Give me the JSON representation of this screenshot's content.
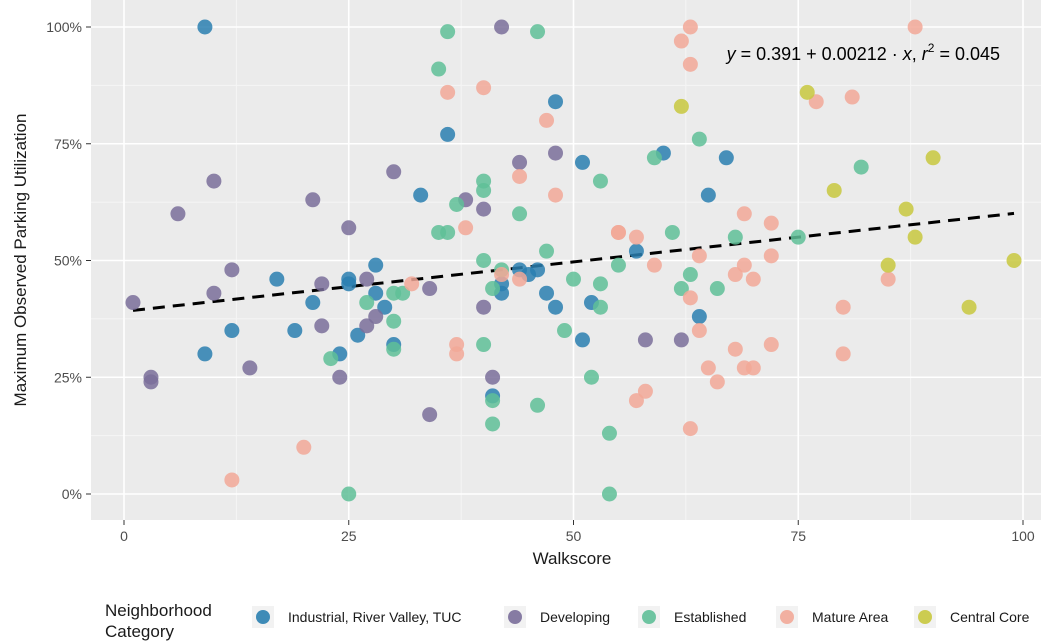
{
  "chart_data": {
    "type": "scatter",
    "xlabel": "Walkscore",
    "ylabel": "Maximum Observed Parking Utilization",
    "xlim": [
      0,
      100
    ],
    "ylim": [
      0,
      1
    ],
    "xticks": [
      {
        "value": 0,
        "label": "0"
      },
      {
        "value": 25,
        "label": "25"
      },
      {
        "value": 50,
        "label": "50"
      },
      {
        "value": 75,
        "label": "75"
      },
      {
        "value": 100,
        "label": "100"
      }
    ],
    "yticks": [
      {
        "value": 0,
        "label": "0%"
      },
      {
        "value": 0.25,
        "label": "25%"
      },
      {
        "value": 0.5,
        "label": "50%"
      },
      {
        "value": 0.75,
        "label": "75%"
      },
      {
        "value": 1,
        "label": "100%"
      }
    ],
    "grid": true,
    "legend": {
      "title_line1": "Neighborhood",
      "title_line2": "Category",
      "position": "bottom"
    },
    "regression": {
      "intercept": 0.391,
      "slope": 0.00212,
      "x_range": [
        1,
        99
      ],
      "style": "dashed",
      "equation_parts": {
        "y": "y",
        "eq1": " = 0.391 + 0.00212 · ",
        "x": "x",
        "sep": ",  ",
        "r": "r",
        "sup": "2",
        "eq2": " = 0.045"
      }
    },
    "series": [
      {
        "name": "Industrial, River Valley, TUC",
        "color": "#2a7fb0",
        "points": [
          [
            9,
            1.0
          ],
          [
            48,
            0.84
          ],
          [
            36,
            0.77
          ],
          [
            60,
            0.73
          ],
          [
            67,
            0.72
          ],
          [
            51,
            0.71
          ],
          [
            33,
            0.64
          ],
          [
            65,
            0.64
          ],
          [
            57,
            0.52
          ],
          [
            28,
            0.49
          ],
          [
            44,
            0.48
          ],
          [
            46,
            0.48
          ],
          [
            45,
            0.47
          ],
          [
            25,
            0.46
          ],
          [
            17,
            0.46
          ],
          [
            25,
            0.45
          ],
          [
            42,
            0.45
          ],
          [
            21,
            0.41
          ],
          [
            28,
            0.43
          ],
          [
            42,
            0.43
          ],
          [
            47,
            0.43
          ],
          [
            29,
            0.4
          ],
          [
            48,
            0.4
          ],
          [
            52,
            0.41
          ],
          [
            19,
            0.35
          ],
          [
            12,
            0.35
          ],
          [
            26,
            0.34
          ],
          [
            51,
            0.33
          ],
          [
            30,
            0.32
          ],
          [
            64,
            0.38
          ],
          [
            9,
            0.3
          ],
          [
            24,
            0.3
          ],
          [
            41,
            0.21
          ]
        ]
      },
      {
        "name": "Developing",
        "color": "#7a6e9a",
        "points": [
          [
            42,
            1.0
          ],
          [
            48,
            0.73
          ],
          [
            44,
            0.71
          ],
          [
            30,
            0.69
          ],
          [
            10,
            0.67
          ],
          [
            6,
            0.6
          ],
          [
            21,
            0.63
          ],
          [
            38,
            0.63
          ],
          [
            40,
            0.61
          ],
          [
            25,
            0.57
          ],
          [
            12,
            0.48
          ],
          [
            27,
            0.46
          ],
          [
            22,
            0.45
          ],
          [
            1,
            0.41
          ],
          [
            10,
            0.43
          ],
          [
            34,
            0.44
          ],
          [
            40,
            0.4
          ],
          [
            28,
            0.38
          ],
          [
            22,
            0.36
          ],
          [
            27,
            0.36
          ],
          [
            58,
            0.33
          ],
          [
            62,
            0.33
          ],
          [
            14,
            0.27
          ],
          [
            3,
            0.25
          ],
          [
            3,
            0.24
          ],
          [
            24,
            0.25
          ],
          [
            41,
            0.25
          ],
          [
            34,
            0.17
          ]
        ]
      },
      {
        "name": "Established",
        "color": "#5fbf98",
        "points": [
          [
            36,
            0.99
          ],
          [
            46,
            0.99
          ],
          [
            35,
            0.91
          ],
          [
            64,
            0.76
          ],
          [
            59,
            0.72
          ],
          [
            82,
            0.7
          ],
          [
            53,
            0.67
          ],
          [
            40,
            0.67
          ],
          [
            40,
            0.65
          ],
          [
            37,
            0.62
          ],
          [
            44,
            0.6
          ],
          [
            35,
            0.56
          ],
          [
            36,
            0.56
          ],
          [
            61,
            0.56
          ],
          [
            68,
            0.55
          ],
          [
            75,
            0.55
          ],
          [
            47,
            0.52
          ],
          [
            40,
            0.5
          ],
          [
            55,
            0.49
          ],
          [
            42,
            0.48
          ],
          [
            50,
            0.46
          ],
          [
            63,
            0.47
          ],
          [
            41,
            0.44
          ],
          [
            62,
            0.44
          ],
          [
            66,
            0.44
          ],
          [
            30,
            0.43
          ],
          [
            31,
            0.43
          ],
          [
            53,
            0.45
          ],
          [
            27,
            0.41
          ],
          [
            53,
            0.4
          ],
          [
            30,
            0.37
          ],
          [
            49,
            0.35
          ],
          [
            30,
            0.31
          ],
          [
            40,
            0.32
          ],
          [
            23,
            0.29
          ],
          [
            52,
            0.25
          ],
          [
            41,
            0.2
          ],
          [
            46,
            0.19
          ],
          [
            41,
            0.15
          ],
          [
            54,
            0.13
          ],
          [
            25,
            0.0
          ],
          [
            54,
            0.0
          ]
        ]
      },
      {
        "name": "Mature Area",
        "color": "#f2a898",
        "points": [
          [
            63,
            1.0
          ],
          [
            88,
            1.0
          ],
          [
            62,
            0.97
          ],
          [
            63,
            0.92
          ],
          [
            40,
            0.87
          ],
          [
            36,
            0.86
          ],
          [
            81,
            0.85
          ],
          [
            77,
            0.84
          ],
          [
            47,
            0.8
          ],
          [
            44,
            0.68
          ],
          [
            48,
            0.64
          ],
          [
            69,
            0.6
          ],
          [
            72,
            0.58
          ],
          [
            38,
            0.57
          ],
          [
            55,
            0.56
          ],
          [
            55,
            0.56
          ],
          [
            57,
            0.55
          ],
          [
            64,
            0.51
          ],
          [
            72,
            0.51
          ],
          [
            69,
            0.49
          ],
          [
            59,
            0.49
          ],
          [
            68,
            0.47
          ],
          [
            70,
            0.46
          ],
          [
            42,
            0.47
          ],
          [
            44,
            0.46
          ],
          [
            85,
            0.46
          ],
          [
            32,
            0.45
          ],
          [
            63,
            0.42
          ],
          [
            80,
            0.4
          ],
          [
            64,
            0.35
          ],
          [
            37,
            0.32
          ],
          [
            37,
            0.3
          ],
          [
            68,
            0.31
          ],
          [
            72,
            0.32
          ],
          [
            80,
            0.3
          ],
          [
            65,
            0.27
          ],
          [
            69,
            0.27
          ],
          [
            70,
            0.27
          ],
          [
            66,
            0.24
          ],
          [
            58,
            0.22
          ],
          [
            57,
            0.2
          ],
          [
            20,
            0.1
          ],
          [
            63,
            0.14
          ],
          [
            12,
            0.03
          ]
        ]
      },
      {
        "name": "Central Core",
        "color": "#c8c83e",
        "points": [
          [
            76,
            0.86
          ],
          [
            62,
            0.83
          ],
          [
            90,
            0.72
          ],
          [
            79,
            0.65
          ],
          [
            87,
            0.61
          ],
          [
            88,
            0.55
          ],
          [
            85,
            0.49
          ],
          [
            99,
            0.5
          ],
          [
            94,
            0.4
          ]
        ]
      }
    ]
  }
}
